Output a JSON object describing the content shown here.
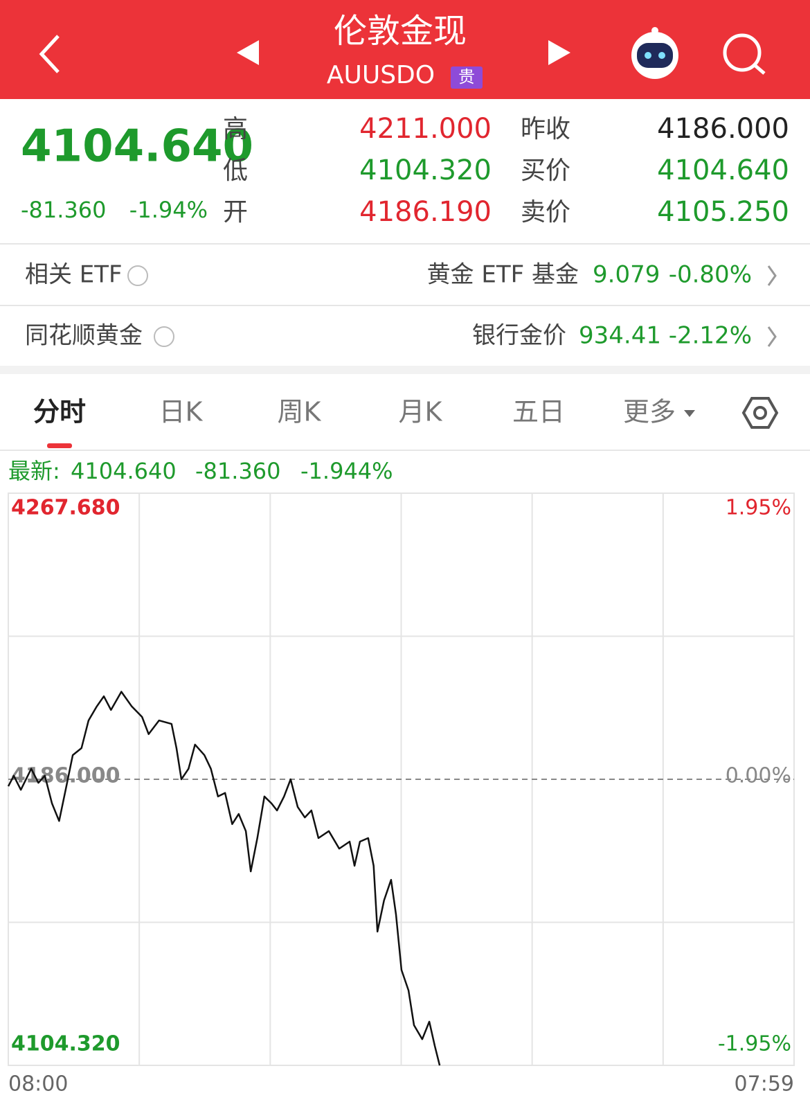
{
  "header": {
    "title": "伦敦金现",
    "code": "AUUSDO",
    "badge": "贵"
  },
  "quote": {
    "price": "4104.640",
    "change": "-81.360",
    "change_pct": "-1.94%",
    "stats": [
      {
        "label": "高",
        "value": "4211.000"
      },
      {
        "label": "低",
        "value": "4104.320"
      },
      {
        "label": "开",
        "value": "4186.190"
      },
      {
        "label": "昨收",
        "value": "4186.000"
      },
      {
        "label": "买价",
        "value": "4104.640"
      },
      {
        "label": "卖价",
        "value": "4105.250"
      }
    ]
  },
  "rows": [
    {
      "label": "相关 ETF",
      "name": "黄金 ETF 基金",
      "value": "9.079",
      "change": "-0.80%"
    },
    {
      "label": "同花顺黄金",
      "name": "银行金价",
      "value": "934.41",
      "change": "-2.12%"
    }
  ],
  "tabs": [
    "分时",
    "日K",
    "周K",
    "月K",
    "五日",
    "更多"
  ],
  "latest": {
    "label": "最新:",
    "price": "4104.640",
    "change": "-81.360",
    "change_pct": "-1.944%"
  },
  "chart_data": {
    "type": "line",
    "color": "#111111",
    "grid": true,
    "x": [
      0,
      10,
      23,
      42,
      55,
      67,
      80,
      93,
      105,
      118,
      134,
      147,
      162,
      175,
      188,
      207,
      226,
      245,
      257,
      276,
      299,
      308,
      317,
      330,
      342,
      359,
      371,
      384,
      397,
      410,
      422,
      435,
      444,
      456,
      469,
      482,
      492,
      505,
      517,
      530,
      543,
      555,
      568,
      587,
      606,
      625,
      634,
      644,
      659,
      669,
      676,
      688,
      701,
      710,
      720,
      733,
      743,
      758,
      771,
      781,
      790
    ],
    "values": [
      4184.0,
      4187.0,
      4183.0,
      4189.0,
      4185.0,
      4187.0,
      4179.1,
      4174.1,
      4183.0,
      4192.9,
      4194.9,
      4202.8,
      4206.8,
      4209.7,
      4205.8,
      4211.0,
      4206.8,
      4203.8,
      4198.9,
      4202.8,
      4201.8,
      4194.9,
      4186.0,
      4189.0,
      4195.9,
      4192.9,
      4189.0,
      4181.1,
      4182.1,
      4173.2,
      4176.1,
      4171.2,
      4159.7,
      4169.2,
      4181.1,
      4179.1,
      4177.1,
      4181.1,
      4186.0,
      4178.1,
      4175.1,
      4177.1,
      4169.2,
      4171.2,
      4166.2,
      4168.2,
      4161.3,
      4168.2,
      4169.2,
      4161.3,
      4142.5,
      4151.4,
      4157.3,
      4147.4,
      4131.6,
      4125.7,
      4115.8,
      4111.8,
      4116.8,
      4109.9,
      4104.3
    ],
    "xlim": [
      0,
      1439
    ],
    "xticks": [
      {
        "value": 0,
        "label": "08:00"
      },
      {
        "value": 1439,
        "label": "07:59"
      }
    ],
    "ylim": [
      4104.32,
      4267.68
    ],
    "yticks": [
      {
        "value": 4267.68,
        "label": "4267.680"
      },
      {
        "value": 4186,
        "label": "4186.000"
      },
      {
        "value": 4104.32,
        "label": "4104.320"
      }
    ],
    "y2lim": [
      -1.95,
      1.95
    ],
    "y2ticks": [
      {
        "value": 1.95,
        "label": "1.95%"
      },
      {
        "value": 0,
        "label": "0.00%"
      },
      {
        "value": -1.95,
        "label": "-1.95%"
      }
    ]
  }
}
